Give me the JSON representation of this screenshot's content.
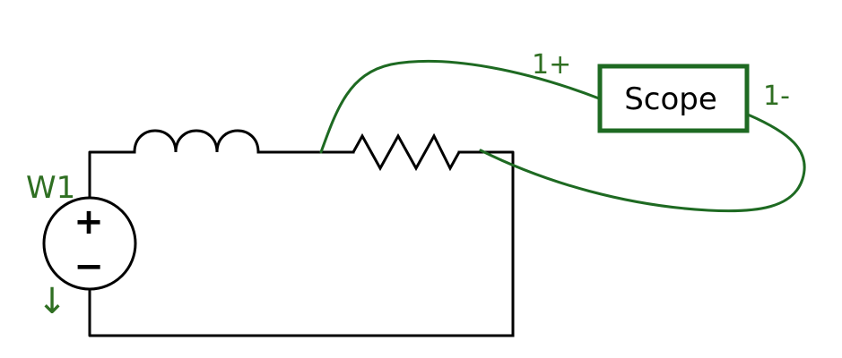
{
  "source": {
    "name": "W1",
    "plus_symbol": "+",
    "minus_symbol": "−",
    "arrow_symbol": "↓"
  },
  "scope": {
    "label": "Scope",
    "pin_positive": "1+",
    "pin_negative": "1-"
  },
  "components": [
    "voltage-source",
    "inductor",
    "resistor",
    "scope"
  ],
  "colors": {
    "circuit": "#000000",
    "probe_wire": "#1e6a22",
    "label": "#2f6f22"
  }
}
